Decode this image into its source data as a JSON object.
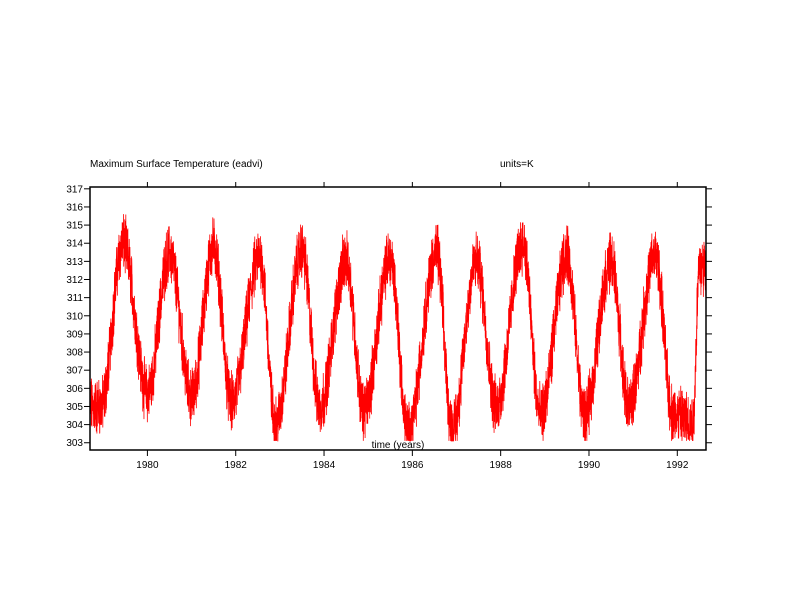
{
  "chart_data": {
    "type": "line",
    "title": "Maximum Surface Temperature (eadvi)",
    "units_label": "units=K",
    "xlabel": "time (years)",
    "ylabel": "",
    "xlim": [
      1978.7,
      1992.65
    ],
    "ylim": [
      302.6,
      317.1
    ],
    "x_ticks": [
      1980,
      1982,
      1984,
      1986,
      1988,
      1990,
      1992
    ],
    "x_tick_labels": [
      "1980",
      "1982",
      "1984",
      "1986",
      "1988",
      "1990",
      "1992"
    ],
    "y_ticks": [
      303,
      304,
      305,
      306,
      307,
      308,
      309,
      310,
      311,
      312,
      313,
      314,
      315,
      316,
      317
    ],
    "y_tick_labels": [
      "303",
      "304",
      "305",
      "306",
      "307",
      "308",
      "309",
      "310",
      "311",
      "312",
      "313",
      "314",
      "315",
      "316",
      "317"
    ],
    "grid": false,
    "series": [
      {
        "color": "#ff0000",
        "peaks": [
          {
            "year": 1979.45,
            "value": 315.0
          },
          {
            "year": 1980.5,
            "value": 314.4
          },
          {
            "year": 1981.5,
            "value": 314.8
          },
          {
            "year": 1982.55,
            "value": 314.3
          },
          {
            "year": 1983.5,
            "value": 314.6
          },
          {
            "year": 1984.5,
            "value": 314.0
          },
          {
            "year": 1985.5,
            "value": 314.2
          },
          {
            "year": 1986.55,
            "value": 314.5
          },
          {
            "year": 1987.45,
            "value": 314.0
          },
          {
            "year": 1988.5,
            "value": 315.0
          },
          {
            "year": 1989.5,
            "value": 314.3
          },
          {
            "year": 1990.5,
            "value": 314.0
          },
          {
            "year": 1991.5,
            "value": 314.3
          },
          {
            "year": 1992.5,
            "value": 313.7
          }
        ],
        "troughs": [
          {
            "year": 1978.95,
            "value": 306.0
          },
          {
            "year": 1980.0,
            "value": 306.7
          },
          {
            "year": 1981.0,
            "value": 306.5
          },
          {
            "year": 1981.9,
            "value": 306.2
          },
          {
            "year": 1982.9,
            "value": 305.0
          },
          {
            "year": 1983.9,
            "value": 306.0
          },
          {
            "year": 1984.9,
            "value": 305.8
          },
          {
            "year": 1985.9,
            "value": 304.6
          },
          {
            "year": 1986.9,
            "value": 304.7
          },
          {
            "year": 1987.9,
            "value": 306.0
          },
          {
            "year": 1988.9,
            "value": 305.5
          },
          {
            "year": 1989.9,
            "value": 305.5
          },
          {
            "year": 1990.9,
            "value": 306.0
          },
          {
            "year": 1991.9,
            "value": 305.6
          },
          {
            "year": 1992.35,
            "value": 305.1
          }
        ]
      }
    ]
  }
}
